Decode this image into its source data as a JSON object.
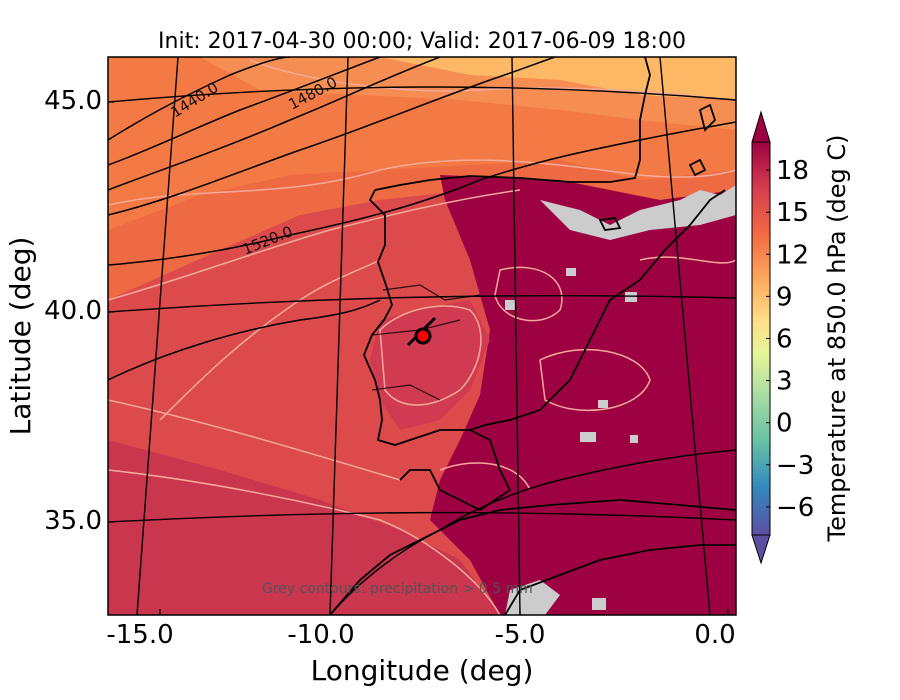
{
  "title": "Init: 2017-04-30 00:00; Valid: 2017-06-09 18:00",
  "xlabel": "Longitude (deg)",
  "ylabel": "Latitude (deg)",
  "x_ticks": [
    "-15.0",
    "-10.0",
    "-5.0",
    "0.0"
  ],
  "y_ticks": [
    "45.0",
    "40.0",
    "35.0"
  ],
  "x_range": [
    -16,
    0.1
  ],
  "y_range": [
    32.5,
    46
  ],
  "colorbar": {
    "label": "Temperature at 850.0 hPa (deg C)",
    "ticks": [
      "−6",
      "−3",
      "0",
      "3",
      "6",
      "9",
      "12",
      "15",
      "18"
    ],
    "tick_values": [
      -6,
      -3,
      0,
      3,
      6,
      9,
      12,
      15,
      18
    ],
    "range": [
      -8,
      20
    ],
    "extend": "both",
    "colormap": "Spectral_r"
  },
  "height_contours": {
    "labels": [
      "1440.0",
      "1480.0",
      "1520.0"
    ],
    "color": "#000000"
  },
  "note": "Grey contours: precipitation > 0.5 mm",
  "marker": {
    "lon": -7.5,
    "lat": 39.3,
    "color": "#ff0000"
  },
  "colors": {
    "hot": "#9e0142",
    "warm_red": "#c9364e",
    "red": "#dc4a4c",
    "orange_red": "#ee6a43",
    "orange": "#f68d52",
    "light_orange": "#fdb866",
    "precip_grey": "#cccccc"
  }
}
